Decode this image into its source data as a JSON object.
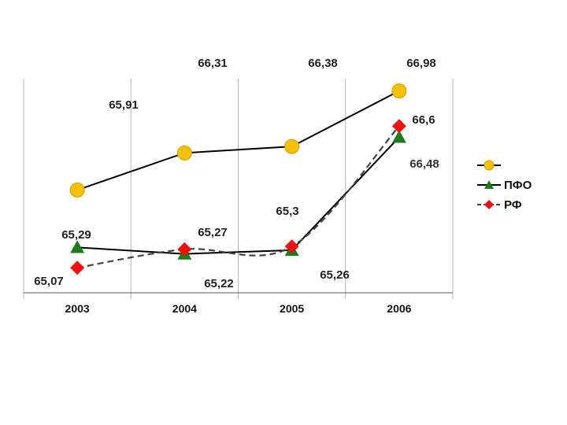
{
  "chart_data": {
    "type": "line",
    "title": "",
    "xlabel": "",
    "ylabel": "",
    "categories": [
      "2003",
      "2004",
      "2005",
      "2006"
    ],
    "ylim": [
      64.8,
      67.2
    ],
    "grid": "vertical",
    "legend_position": "right",
    "series": [
      {
        "name": "",
        "values": [
          65.91,
          66.31,
          66.38,
          66.98
        ],
        "labels": [
          "65,91",
          "66,31",
          "66,38",
          "66,98"
        ],
        "color": "#f5c000",
        "marker": "circle",
        "dash": "solid"
      },
      {
        "name": "ПФО",
        "values": [
          65.29,
          65.22,
          65.26,
          66.48
        ],
        "labels": [
          "65,29",
          "65,22",
          "65,26",
          "66,48"
        ],
        "color": "#1e7b1e",
        "marker": "triangle",
        "dash": "solid"
      },
      {
        "name": "РФ",
        "values": [
          65.07,
          65.27,
          65.3,
          66.6
        ],
        "labels": [
          "65,07",
          "65,27",
          "65,3",
          "66,6"
        ],
        "color": "#ee1111",
        "marker": "diamond",
        "dash": "dashed"
      }
    ]
  }
}
